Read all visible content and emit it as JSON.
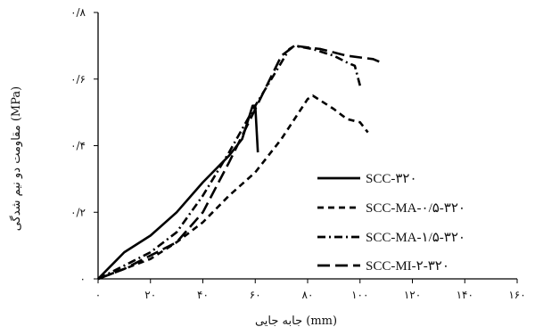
{
  "chart_data": {
    "type": "line",
    "title": "",
    "xlabel": "جابه جایی (mm)",
    "ylabel": "مقاومت دو نیم شدگی (MPa)",
    "xlim": [
      0,
      160
    ],
    "ylim": [
      0,
      0.8
    ],
    "x_ticks": [
      {
        "value": 0,
        "label": "۰"
      },
      {
        "value": 20,
        "label": "۲۰"
      },
      {
        "value": 40,
        "label": "۴۰"
      },
      {
        "value": 60,
        "label": "۶۰"
      },
      {
        "value": 80,
        "label": "۸۰"
      },
      {
        "value": 100,
        "label": "۱۰۰"
      },
      {
        "value": 120,
        "label": "۱۲۰"
      },
      {
        "value": 140,
        "label": "۱۴۰"
      },
      {
        "value": 160,
        "label": "۱۶۰"
      }
    ],
    "y_ticks": [
      {
        "value": 0,
        "label": "۰"
      },
      {
        "value": 0.2,
        "label": "۰/۲"
      },
      {
        "value": 0.4,
        "label": "۰/۴"
      },
      {
        "value": 0.6,
        "label": "۰/۶"
      },
      {
        "value": 0.8,
        "label": "۰/۸"
      }
    ],
    "grid": false,
    "legend_position": "right",
    "series": [
      {
        "name": "SCC-۳۲۰",
        "style": "solid",
        "color": "#000000",
        "points": [
          [
            0,
            0
          ],
          [
            5,
            0.04
          ],
          [
            10,
            0.08
          ],
          [
            20,
            0.13
          ],
          [
            30,
            0.2
          ],
          [
            40,
            0.29
          ],
          [
            50,
            0.37
          ],
          [
            55,
            0.42
          ],
          [
            59,
            0.52
          ],
          [
            60,
            0.52
          ],
          [
            61,
            0.38
          ]
        ]
      },
      {
        "name": "SCC-MA-۰/۵-۳۲۰",
        "style": "dashed",
        "color": "#000000",
        "points": [
          [
            0,
            0
          ],
          [
            10,
            0.03
          ],
          [
            20,
            0.06
          ],
          [
            30,
            0.11
          ],
          [
            40,
            0.17
          ],
          [
            50,
            0.25
          ],
          [
            60,
            0.32
          ],
          [
            70,
            0.42
          ],
          [
            80,
            0.54
          ],
          [
            82,
            0.55
          ],
          [
            90,
            0.51
          ],
          [
            95,
            0.48
          ],
          [
            100,
            0.47
          ],
          [
            103,
            0.44
          ]
        ]
      },
      {
        "name": "SCC-MA-۱/۵-۳۲۰",
        "style": "dash-dot",
        "color": "#000000",
        "points": [
          [
            0,
            0
          ],
          [
            10,
            0.04
          ],
          [
            20,
            0.08
          ],
          [
            30,
            0.14
          ],
          [
            40,
            0.25
          ],
          [
            50,
            0.38
          ],
          [
            60,
            0.52
          ],
          [
            70,
            0.65
          ],
          [
            73,
            0.69
          ],
          [
            75,
            0.7
          ],
          [
            82,
            0.69
          ],
          [
            90,
            0.67
          ],
          [
            95,
            0.65
          ],
          [
            98,
            0.64
          ],
          [
            100,
            0.58
          ]
        ]
      },
      {
        "name": "SCC-MI-۲-۳۲۰",
        "style": "long-dash",
        "color": "#000000",
        "points": [
          [
            0,
            0
          ],
          [
            10,
            0.03
          ],
          [
            20,
            0.07
          ],
          [
            30,
            0.11
          ],
          [
            40,
            0.2
          ],
          [
            50,
            0.35
          ],
          [
            60,
            0.51
          ],
          [
            70,
            0.67
          ],
          [
            75,
            0.7
          ],
          [
            85,
            0.69
          ],
          [
            95,
            0.67
          ],
          [
            105,
            0.66
          ],
          [
            108,
            0.65
          ]
        ]
      }
    ]
  }
}
